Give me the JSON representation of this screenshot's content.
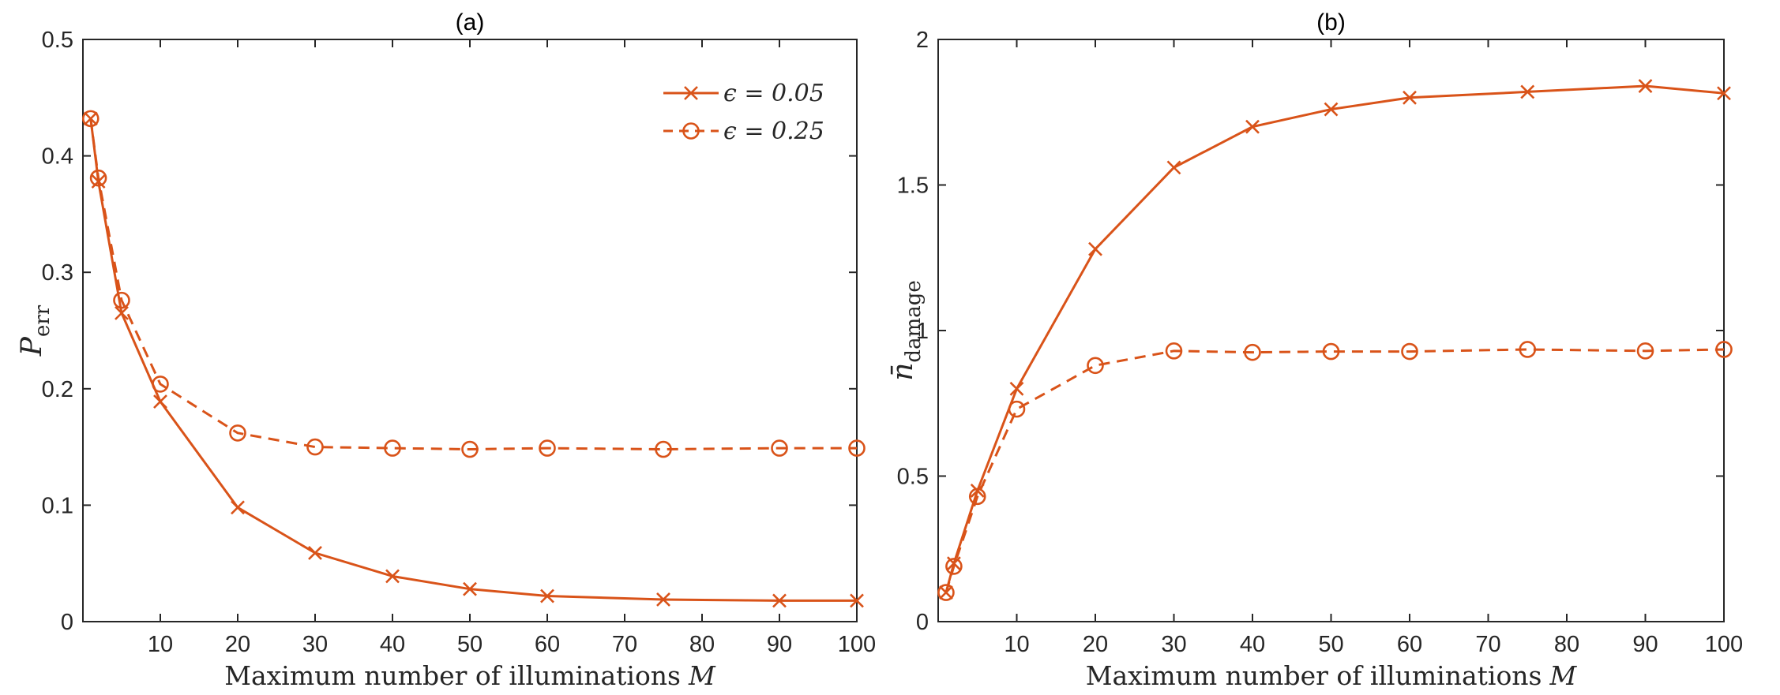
{
  "chart_data": [
    {
      "type": "line",
      "title": "(a)",
      "xlabel": "Maximum number of illuminations",
      "xlabel_var": "M",
      "ylabel": "P",
      "ylabel_sub": "err",
      "xlim": [
        0,
        100
      ],
      "ylim": [
        0,
        0.5
      ],
      "xticks": [
        10,
        20,
        30,
        40,
        50,
        60,
        70,
        80,
        90,
        100
      ],
      "yticks": [
        0,
        0.1,
        0.2,
        0.3,
        0.4,
        0.5
      ],
      "xtick_labels": [
        "10",
        "20",
        "30",
        "40",
        "50",
        "60",
        "70",
        "80",
        "90",
        "100"
      ],
      "ytick_labels": [
        "0",
        "0.1",
        "0.2",
        "0.3",
        "0.4",
        "0.5"
      ],
      "grid": false,
      "legend": "top-right",
      "series": [
        {
          "name": "ε = 0.05",
          "legend_label": "ϵ = 0.05",
          "style": "solid",
          "marker": "x",
          "x": [
            1,
            2,
            5,
            10,
            20,
            30,
            40,
            50,
            60,
            75,
            90,
            100
          ],
          "y": [
            0.432,
            0.378,
            0.265,
            0.189,
            0.098,
            0.059,
            0.039,
            0.028,
            0.022,
            0.019,
            0.018,
            0.018
          ]
        },
        {
          "name": "ε = 0.25",
          "legend_label": "ϵ = 0.25",
          "style": "dashed",
          "marker": "o",
          "x": [
            1,
            2,
            5,
            10,
            20,
            30,
            40,
            50,
            60,
            75,
            90,
            100
          ],
          "y": [
            0.432,
            0.381,
            0.276,
            0.204,
            0.162,
            0.15,
            0.149,
            0.148,
            0.149,
            0.148,
            0.149,
            0.149
          ]
        }
      ]
    },
    {
      "type": "line",
      "title": "(b)",
      "xlabel": "Maximum number of illuminations",
      "xlabel_var": "M",
      "ylabel": "n̄",
      "ylabel_sub": "damage",
      "xlim": [
        0,
        100
      ],
      "ylim": [
        0,
        2
      ],
      "xticks": [
        10,
        20,
        30,
        40,
        50,
        60,
        70,
        80,
        90,
        100
      ],
      "yticks": [
        0,
        0.5,
        1,
        1.5,
        2
      ],
      "xtick_labels": [
        "10",
        "20",
        "30",
        "40",
        "50",
        "60",
        "70",
        "80",
        "90",
        "100"
      ],
      "ytick_labels": [
        "0",
        "0.5",
        "1",
        "1.5",
        "2"
      ],
      "grid": false,
      "series": [
        {
          "name": "ε = 0.05",
          "style": "solid",
          "marker": "x",
          "x": [
            1,
            2,
            5,
            10,
            20,
            30,
            40,
            50,
            60,
            75,
            90,
            100
          ],
          "y": [
            0.1,
            0.2,
            0.45,
            0.8,
            1.28,
            1.56,
            1.7,
            1.76,
            1.8,
            1.82,
            1.84,
            1.815
          ]
        },
        {
          "name": "ε = 0.25",
          "style": "dashed",
          "marker": "o",
          "x": [
            1,
            2,
            5,
            10,
            20,
            30,
            40,
            50,
            60,
            75,
            90,
            100
          ],
          "y": [
            0.1,
            0.19,
            0.43,
            0.73,
            0.88,
            0.93,
            0.925,
            0.928,
            0.928,
            0.935,
            0.93,
            0.935
          ]
        }
      ]
    }
  ],
  "colors": {
    "series": "#d95319",
    "axes": "#262626",
    "background": "#ffffff"
  }
}
